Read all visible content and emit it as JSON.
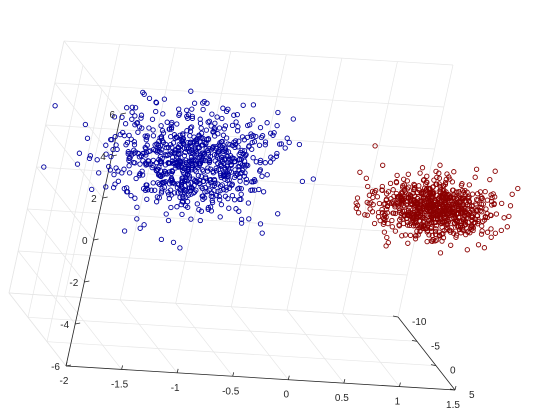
{
  "chart_data": {
    "type": "scatter",
    "title": "",
    "xlabel": "",
    "ylabel": "",
    "zlabel": "",
    "xlim": [
      -2,
      1.5
    ],
    "ylim": [
      -10,
      5
    ],
    "zlim": [
      -6,
      6
    ],
    "x_ticks": [
      "-2",
      "-1.5",
      "-1",
      "-0.5",
      "0",
      "0.5",
      "1",
      "1.5"
    ],
    "y_ticks": [
      "-10",
      "-5",
      "0",
      "5"
    ],
    "z_ticks": [
      "-6",
      "-4",
      "-2",
      "0",
      "2",
      "4",
      "6"
    ],
    "grid": true,
    "marker": "open-circle",
    "series": [
      {
        "color": "#0000a0",
        "count": 800,
        "cluster_center": {
          "x": -1.0,
          "y": -1.5,
          "z": 2.5
        },
        "spread": {
          "x": 0.35,
          "y": 2.0,
          "z": 1.1
        }
      },
      {
        "color": "#8b0000",
        "count": 800,
        "cluster_center": {
          "x": 1.1,
          "y": 2.0,
          "z": 1.8
        },
        "spread": {
          "x": 0.25,
          "y": 1.5,
          "z": 0.6
        }
      }
    ]
  }
}
